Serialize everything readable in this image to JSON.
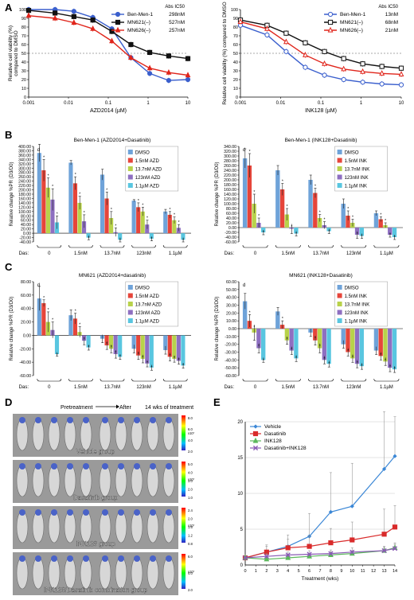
{
  "panel_letters": [
    "A",
    "B",
    "C",
    "D",
    "E"
  ],
  "colors": {
    "blue": "#3a5fcd",
    "black": "#111111",
    "red": "#e0251b",
    "bars": [
      "#6fa3d9",
      "#e6453a",
      "#b8d24a",
      "#8e6fc1",
      "#59c6e0"
    ],
    "e_vehicle": "#3b87d6",
    "e_dasatinib": "#d92b2b",
    "e_ink": "#5cb85c",
    "e_combo": "#8a5ab5"
  },
  "chart_data": [
    {
      "id": "A_left",
      "type": "line",
      "xlabel": "AZD2014 (µM)",
      "ylabel": "Relative cell viability (%)\ncompared to DMSO",
      "xscale": "log",
      "xlim": [
        0.001,
        10
      ],
      "ylim": [
        0,
        100
      ],
      "xticks": [
        "0.001",
        "0.01",
        "0.1",
        "1",
        "10"
      ],
      "yticks": [
        "0",
        "10",
        "20",
        "30",
        "40",
        "50",
        "60",
        "70",
        "80",
        "90",
        "100"
      ],
      "dashed_y": 50,
      "legend_header": "Abs IC50",
      "series": [
        {
          "name": "Ben-Men-1",
          "ic50": "298nM",
          "color": "blue",
          "marker": "circle-filled",
          "x": [
            0.001,
            0.0046,
            0.0137,
            0.041,
            0.123,
            0.37,
            1.1,
            3.3,
            10
          ],
          "y": [
            100,
            100,
            98,
            91,
            78,
            45,
            27,
            19,
            20
          ]
        },
        {
          "name": "MN621(–)",
          "ic50": "527nM",
          "color": "black",
          "marker": "square-filled",
          "x": [
            0.001,
            0.0046,
            0.0137,
            0.041,
            0.123,
            0.37,
            1.1,
            3.3,
            10
          ],
          "y": [
            99,
            96,
            92,
            88,
            75,
            60,
            51,
            47,
            44
          ]
        },
        {
          "name": "MN626(–)",
          "ic50": "257nM",
          "color": "red",
          "marker": "triangle-filled",
          "x": [
            0.001,
            0.0046,
            0.0137,
            0.041,
            0.123,
            0.37,
            1.1,
            3.3,
            10
          ],
          "y": [
            93,
            90,
            85,
            78,
            64,
            45,
            33,
            28,
            25
          ]
        }
      ]
    },
    {
      "id": "A_right",
      "type": "line",
      "xlabel": "INK128 (µM)",
      "ylabel": "Relative cell viability (%) compared to DMSO",
      "xscale": "log",
      "xlim": [
        0.001,
        10
      ],
      "ylim": [
        0,
        100
      ],
      "xticks": [
        "0.001",
        "0.01",
        "0.1",
        "1",
        "10"
      ],
      "yticks": [
        "0",
        "10",
        "20",
        "30",
        "40",
        "50",
        "60",
        "70",
        "80",
        "90",
        "100"
      ],
      "dashed_y": 50,
      "legend_header": "Abs IC50",
      "series": [
        {
          "name": "Ben-Men-1",
          "ic50": "13nM",
          "color": "blue",
          "marker": "circle-open",
          "x": [
            0.001,
            0.0046,
            0.0137,
            0.041,
            0.123,
            0.37,
            1.1,
            3.3,
            10
          ],
          "y": [
            82,
            71,
            52,
            34,
            25,
            20,
            17,
            15,
            14
          ]
        },
        {
          "name": "MN621(–)",
          "ic50": "68nM",
          "color": "black",
          "marker": "square-open",
          "x": [
            0.001,
            0.0046,
            0.0137,
            0.041,
            0.123,
            0.37,
            1.1,
            3.3,
            10
          ],
          "y": [
            88,
            82,
            73,
            62,
            52,
            44,
            38,
            35,
            33
          ]
        },
        {
          "name": "MN626(–)",
          "ic50": "21nM",
          "color": "red",
          "marker": "triangle-open",
          "x": [
            0.001,
            0.0046,
            0.0137,
            0.041,
            0.123,
            0.37,
            1.1,
            3.3,
            10
          ],
          "y": [
            86,
            78,
            63,
            48,
            38,
            32,
            29,
            27,
            26
          ]
        }
      ]
    },
    {
      "id": "B_left",
      "type": "bar",
      "title": "Ben-Men-1 (AZD2014+Dasatinib)",
      "ylabel": "Relative change %PR (D3/D0)",
      "ylim": [
        -40,
        400
      ],
      "ystep": 20,
      "xlabel_prefix": "Das:",
      "categories": [
        "0",
        "1.5nM",
        "13.7nM",
        "123nM",
        "1.1µM"
      ],
      "legend": [
        "DMSO",
        "1.5nM AZD",
        "13.7nM AZD",
        "123nM AZD",
        "1.1µM AZD"
      ],
      "values": [
        [
          370,
          290,
          210,
          155,
          50
        ],
        [
          325,
          230,
          140,
          55,
          -20
        ],
        [
          270,
          160,
          70,
          5,
          -30
        ],
        [
          150,
          120,
          100,
          40,
          -25
        ],
        [
          100,
          85,
          60,
          25,
          -30
        ]
      ],
      "errors": [
        [
          40,
          50,
          45,
          50,
          30
        ],
        [
          10,
          30,
          30,
          30,
          10
        ],
        [
          25,
          30,
          30,
          20,
          10
        ],
        [
          5,
          20,
          20,
          20,
          10
        ],
        [
          10,
          15,
          15,
          15,
          10
        ]
      ],
      "d_note": "d"
    },
    {
      "id": "B_right",
      "type": "bar",
      "title": "Ben-Men-1 (INK128+Dasatinib)",
      "ylabel": "Relative change %PR (D3/D0)",
      "ylim": [
        -60,
        340
      ],
      "ystep": 20,
      "xlabel_prefix": "Das:",
      "categories": [
        "0",
        "1.5nM",
        "13.7nM",
        "123nM",
        "1.1µM"
      ],
      "legend": [
        "DMSO",
        "1.5nM INK",
        "13.7nM INK",
        "123nM INK",
        "1.1µM INK"
      ],
      "values": [
        [
          290,
          260,
          100,
          20,
          -20
        ],
        [
          240,
          160,
          55,
          -5,
          -25
        ],
        [
          200,
          145,
          40,
          10,
          -15
        ],
        [
          100,
          50,
          20,
          -30,
          -35
        ],
        [
          60,
          35,
          10,
          -30,
          -40
        ]
      ],
      "errors": [
        [
          40,
          50,
          40,
          20,
          10
        ],
        [
          20,
          25,
          25,
          20,
          10
        ],
        [
          20,
          20,
          15,
          15,
          10
        ],
        [
          20,
          20,
          15,
          15,
          10
        ],
        [
          10,
          10,
          10,
          10,
          10
        ]
      ],
      "d_note": "d"
    },
    {
      "id": "C_left",
      "type": "bar",
      "title": "MN621 (AZD2014+dasatinib)",
      "ylabel": "Relative change %PR (D3/D0)",
      "ylim": [
        -60,
        80
      ],
      "ystep": 20,
      "xlabel_prefix": "Das:",
      "categories": [
        "0",
        "1.5nM",
        "13.7nM",
        "123nM",
        "1.1µM"
      ],
      "legend": [
        "DMSO",
        "1.5nM AZD",
        "13.7nM AZD",
        "123nM AZD",
        "1.1µM AZD"
      ],
      "values": [
        [
          55,
          48,
          20,
          8,
          -28
        ],
        [
          30,
          25,
          5,
          -8,
          -18
        ],
        [
          -5,
          -15,
          -20,
          -28,
          -32
        ],
        [
          -20,
          -30,
          -35,
          -42,
          -48
        ],
        [
          -22,
          -32,
          -35,
          -38,
          -45
        ]
      ],
      "errors": [
        [
          18,
          5,
          15,
          12,
          3
        ],
        [
          8,
          8,
          8,
          6,
          4
        ],
        [
          6,
          6,
          6,
          6,
          4
        ],
        [
          6,
          6,
          6,
          5,
          4
        ],
        [
          6,
          6,
          5,
          5,
          4
        ]
      ],
      "d_note": "d"
    },
    {
      "id": "C_right",
      "type": "bar",
      "title": "MN621 (INK128+Dasatinib)",
      "ylabel": "Relative change %PR (D3/D0)",
      "ylim": [
        -60,
        60
      ],
      "ystep": 10,
      "xlabel_prefix": "Das:",
      "categories": [
        "0",
        "1.5nM",
        "13.7nM",
        "123nM",
        "1.1µM"
      ],
      "legend": [
        "DMSO",
        "1.5nM INK",
        "13.7nM INK",
        "123nM INK",
        "1.1µM INK"
      ],
      "values": [
        [
          35,
          10,
          -5,
          -25,
          -40
        ],
        [
          22,
          5,
          -15,
          -28,
          -38
        ],
        [
          -5,
          -15,
          -25,
          -40,
          -45
        ],
        [
          -20,
          -30,
          -38,
          -45,
          -48
        ],
        [
          -28,
          -35,
          -42,
          -50,
          -52
        ]
      ],
      "errors": [
        [
          10,
          8,
          10,
          6,
          3
        ],
        [
          5,
          5,
          5,
          5,
          4
        ],
        [
          5,
          6,
          6,
          5,
          4
        ],
        [
          5,
          5,
          5,
          5,
          4
        ],
        [
          5,
          5,
          5,
          5,
          4
        ]
      ],
      "d_note": "d"
    },
    {
      "id": "E",
      "type": "line",
      "xlabel": "Treatment (wks)",
      "xlim": [
        0,
        14
      ],
      "ylim": [
        0,
        20
      ],
      "xticks": [
        "0",
        "1",
        "2",
        "3",
        "4",
        "5",
        "6",
        "7",
        "8",
        "9",
        "10",
        "11",
        "12",
        "13",
        "14"
      ],
      "yticks": [
        "0",
        "5",
        "10",
        "15",
        "20"
      ],
      "series": [
        {
          "name": "Vehicle",
          "color": "e_vehicle",
          "marker": "diamond",
          "x": [
            0,
            2,
            4,
            6,
            8,
            10,
            13,
            14
          ],
          "y": [
            1,
            1.8,
            2.6,
            4,
            7.4,
            8.2,
            13.4,
            15.2
          ],
          "err": [
            0,
            1,
            1.6,
            3.2,
            5.5,
            6,
            8,
            5.5
          ]
        },
        {
          "name": "Dasatinib",
          "color": "e_dasatinib",
          "marker": "square",
          "x": [
            0,
            2,
            4,
            6,
            8,
            10,
            13,
            14
          ],
          "y": [
            1,
            1.8,
            2.4,
            2.6,
            3.1,
            3.5,
            4.3,
            5.3
          ],
          "err": [
            0,
            0.8,
            1.2,
            1.5,
            2,
            2.5,
            3.5,
            3
          ]
        },
        {
          "name": "INK128",
          "color": "e_ink",
          "marker": "triangle",
          "x": [
            0,
            2,
            4,
            6,
            8,
            10,
            13,
            14
          ],
          "y": [
            1,
            0.8,
            1,
            1.2,
            1.4,
            1.6,
            2,
            2.4
          ],
          "err": [
            0,
            0.3,
            0.3,
            0.3,
            0.4,
            0.4,
            0.5,
            0.5
          ]
        },
        {
          "name": "Dasatinib+INK128",
          "color": "e_combo",
          "marker": "x",
          "x": [
            0,
            2,
            4,
            6,
            8,
            10,
            13,
            14
          ],
          "y": [
            1,
            1.2,
            1.4,
            1.5,
            1.6,
            1.8,
            2,
            2.3
          ],
          "err": [
            0,
            0.4,
            0.4,
            0.5,
            0.5,
            0.6,
            0.6,
            0.8
          ]
        }
      ]
    }
  ],
  "panel_d": {
    "pretreatment": "Pretreatment",
    "after": "After",
    "wks": "14 wks of treatment",
    "groups": [
      {
        "label": "Vehicle group",
        "scale": [
          "8.0",
          "6.0",
          "4.0",
          "2.0"
        ],
        "exp": "x10⁷"
      },
      {
        "label": "Dasatinib group",
        "scale": [
          "5.0",
          "4.0",
          "3.0",
          "2.0",
          "1.0"
        ],
        "exp": "x10⁷"
      },
      {
        "label": "INK128 group",
        "scale": [
          "2.4",
          "2.0",
          "1.6",
          "1.2",
          "0.8"
        ],
        "exp": "x10⁷"
      },
      {
        "label": "INK128/Dasatinib combination group",
        "scale": [
          "6.0",
          "4.0",
          "2.0"
        ],
        "exp": "x10⁷"
      }
    ]
  }
}
